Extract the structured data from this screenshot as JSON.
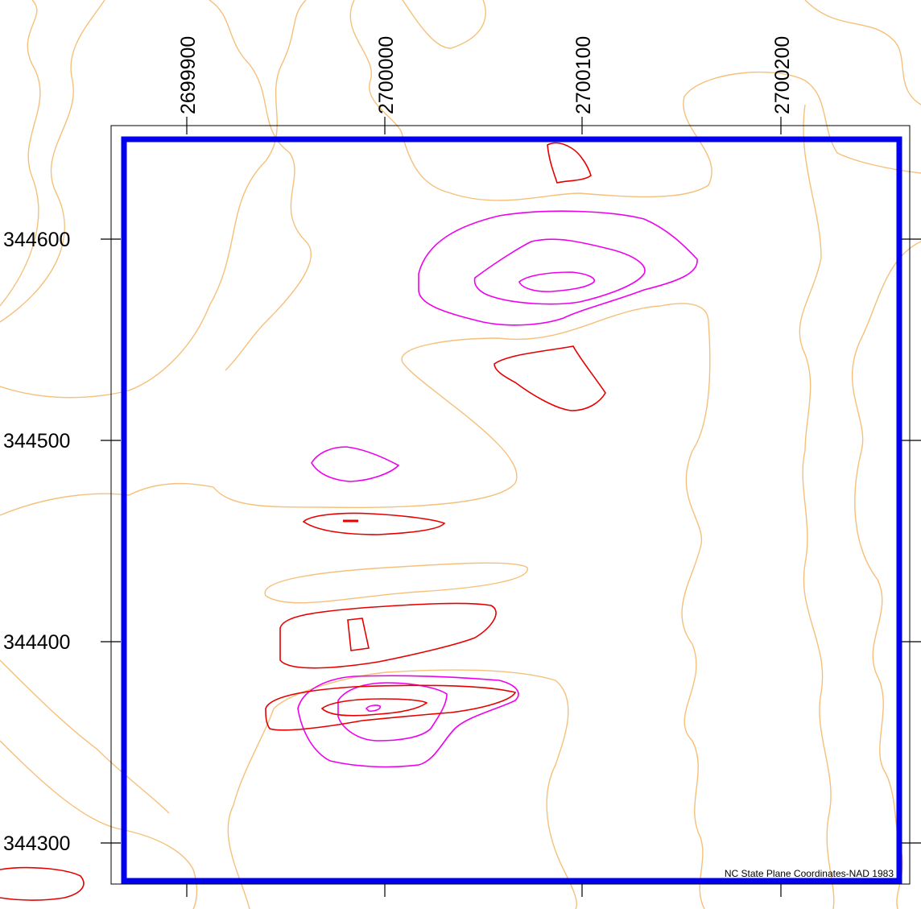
{
  "map": {
    "coordinate_system_note": "NC State Plane Coordinates-NAD 1983",
    "x_axis": {
      "ticks": [
        {
          "value": 2699900,
          "label": "2699900"
        },
        {
          "value": 2700000,
          "label": "2700000"
        },
        {
          "value": 2700100,
          "label": "2700100"
        },
        {
          "value": 2700200,
          "label": "2700200"
        }
      ]
    },
    "y_axis": {
      "ticks": [
        {
          "value": 344600,
          "label": "344600"
        },
        {
          "value": 344500,
          "label": "344500"
        },
        {
          "value": 344400,
          "label": "344400"
        },
        {
          "value": 344300,
          "label": "344300"
        }
      ]
    },
    "colors": {
      "neatline": "#000000",
      "study_boundary": "#0000ee",
      "contour_orange": "#f5c07a",
      "contour_magenta": "#ee00ee",
      "contour_red": "#e60000"
    }
  }
}
